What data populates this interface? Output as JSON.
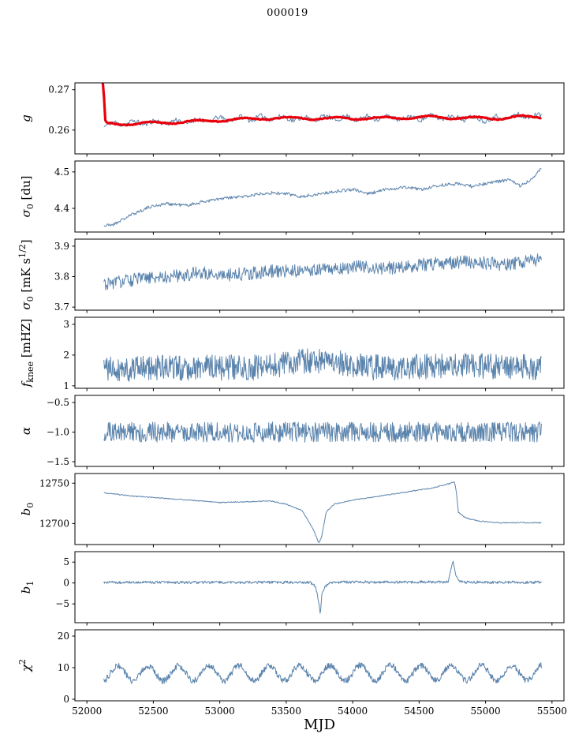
{
  "title": "000019",
  "xlabel": "MJD",
  "colors": {
    "line": "#5b84ad",
    "overlay": "#e8000b"
  },
  "axis": {
    "xlim": [
      51910,
      55590
    ],
    "xticks": [
      52000,
      52500,
      53000,
      53500,
      54000,
      54500,
      55000,
      55500
    ],
    "xtick_labels": [
      "52000",
      "52500",
      "53000",
      "53500",
      "54000",
      "54500",
      "55000",
      "55500"
    ]
  },
  "chart_data": [
    {
      "id": "g",
      "type": "line",
      "ylabel": [
        {
          "t": "g",
          "it": 1
        }
      ],
      "ylim": [
        0.2541,
        0.2717
      ],
      "yticks": [
        {
          "v": 0.26,
          "l": "0.26"
        },
        {
          "v": 0.27,
          "l": "0.27"
        }
      ],
      "series": [
        {
          "name": "g-fit",
          "color": "line",
          "width": 1,
          "seed": 11,
          "n": 420,
          "noise": 0.0006,
          "xrange": [
            52128,
            55420
          ],
          "sine": {
            "amp": 0.0005,
            "period": 160,
            "phase": 0.3
          },
          "keypoints": [
            [
              52128,
              0.2612
            ],
            [
              52250,
              0.2617
            ],
            [
              52500,
              0.2619
            ],
            [
              52800,
              0.2622
            ],
            [
              53000,
              0.2627
            ],
            [
              53200,
              0.2629
            ],
            [
              53400,
              0.2631
            ],
            [
              53600,
              0.2628
            ],
            [
              53800,
              0.263
            ],
            [
              54000,
              0.2629
            ],
            [
              54200,
              0.2631
            ],
            [
              54400,
              0.2629
            ],
            [
              54600,
              0.2632
            ],
            [
              54800,
              0.2631
            ],
            [
              55000,
              0.2627
            ],
            [
              55150,
              0.2632
            ],
            [
              55300,
              0.2636
            ],
            [
              55420,
              0.2633
            ]
          ]
        },
        {
          "name": "g-smooth",
          "color": "overlay",
          "width": 3.2,
          "seed": 12,
          "n": 360,
          "noise": 0.00012,
          "xrange": [
            52120,
            55420
          ],
          "sine": {
            "amp": 0.0003,
            "period": 350,
            "phase": 2
          },
          "keypoints": [
            [
              52120,
              0.2714
            ],
            [
              52126,
              0.2714
            ],
            [
              52134,
              0.2625
            ],
            [
              52145,
              0.2616
            ],
            [
              52250,
              0.2615
            ],
            [
              52500,
              0.2618
            ],
            [
              52800,
              0.2621
            ],
            [
              53100,
              0.2626
            ],
            [
              53400,
              0.263
            ],
            [
              53700,
              0.2629
            ],
            [
              54000,
              0.2629
            ],
            [
              54300,
              0.263
            ],
            [
              54600,
              0.2632
            ],
            [
              54900,
              0.263
            ],
            [
              55100,
              0.2629
            ],
            [
              55250,
              0.2633
            ],
            [
              55420,
              0.2632
            ]
          ]
        }
      ]
    },
    {
      "id": "sigma0-du",
      "type": "line",
      "ylabel": [
        {
          "t": "σ",
          "it": 1
        },
        {
          "t": "0",
          "sub": 1
        },
        {
          "t": " [du]"
        }
      ],
      "ylim": [
        4.335,
        4.53
      ],
      "yticks": [
        {
          "v": 4.4,
          "l": "4.4"
        },
        {
          "v": 4.5,
          "l": "4.5"
        }
      ],
      "series": [
        {
          "name": "sigma0-du",
          "color": "line",
          "width": 1,
          "seed": 21,
          "n": 650,
          "noise": 0.0045,
          "xrange": [
            52128,
            55420
          ],
          "keypoints": [
            [
              52128,
              4.352
            ],
            [
              52200,
              4.356
            ],
            [
              52350,
              4.385
            ],
            [
              52480,
              4.405
            ],
            [
              52600,
              4.413
            ],
            [
              52750,
              4.408
            ],
            [
              52900,
              4.42
            ],
            [
              53050,
              4.428
            ],
            [
              53200,
              4.433
            ],
            [
              53350,
              4.443
            ],
            [
              53500,
              4.44
            ],
            [
              53620,
              4.432
            ],
            [
              53750,
              4.44
            ],
            [
              53900,
              4.448
            ],
            [
              54000,
              4.452
            ],
            [
              54120,
              4.44
            ],
            [
              54250,
              4.452
            ],
            [
              54400,
              4.458
            ],
            [
              54520,
              4.452
            ],
            [
              54650,
              4.463
            ],
            [
              54800,
              4.468
            ],
            [
              54900,
              4.46
            ],
            [
              55050,
              4.472
            ],
            [
              55180,
              4.478
            ],
            [
              55260,
              4.462
            ],
            [
              55340,
              4.478
            ],
            [
              55420,
              4.512
            ]
          ]
        }
      ]
    },
    {
      "id": "sigma0-mks",
      "type": "line",
      "ylabel": [
        {
          "t": "σ",
          "it": 1
        },
        {
          "t": "0",
          "sub": 1
        },
        {
          "t": " [mK s"
        },
        {
          "t": "1/2",
          "sup": 1
        },
        {
          "t": "]"
        }
      ],
      "ylim": [
        3.69,
        3.923
      ],
      "yticks": [
        {
          "v": 3.7,
          "l": "3.7"
        },
        {
          "v": 3.8,
          "l": "3.8"
        },
        {
          "v": 3.9,
          "l": "3.9"
        }
      ],
      "series": [
        {
          "name": "sigma0-mks",
          "color": "line",
          "width": 1,
          "seed": 31,
          "n": 700,
          "noise": 0.022,
          "xrange": [
            52128,
            55420
          ],
          "keypoints": [
            [
              52128,
              3.775
            ],
            [
              52350,
              3.79
            ],
            [
              52600,
              3.8
            ],
            [
              52850,
              3.812
            ],
            [
              53100,
              3.806
            ],
            [
              53400,
              3.818
            ],
            [
              53700,
              3.822
            ],
            [
              54000,
              3.832
            ],
            [
              54300,
              3.828
            ],
            [
              54600,
              3.842
            ],
            [
              54900,
              3.848
            ],
            [
              55150,
              3.838
            ],
            [
              55300,
              3.85
            ],
            [
              55420,
              3.858
            ]
          ]
        }
      ]
    },
    {
      "id": "fknee",
      "type": "line",
      "ylabel": [
        {
          "t": "f",
          "it": 1
        },
        {
          "t": "knee",
          "sub": 1
        },
        {
          "t": " [mHZ]"
        }
      ],
      "ylim": [
        0.92,
        3.23
      ],
      "yticks": [
        {
          "v": 1,
          "l": "1"
        },
        {
          "v": 2,
          "l": "2"
        },
        {
          "v": 3,
          "l": "3"
        }
      ],
      "series": [
        {
          "name": "fknee",
          "color": "line",
          "width": 1,
          "seed": 41,
          "n": 850,
          "noise": 0.42,
          "xrange": [
            52128,
            55420
          ],
          "keypoints": [
            [
              52128,
              1.55
            ],
            [
              52800,
              1.6
            ],
            [
              53300,
              1.6
            ],
            [
              53650,
              1.8
            ],
            [
              53900,
              1.75
            ],
            [
              54100,
              1.6
            ],
            [
              54400,
              1.6
            ],
            [
              54800,
              1.65
            ],
            [
              55420,
              1.6
            ]
          ]
        }
      ]
    },
    {
      "id": "alpha",
      "type": "line",
      "ylabel": [
        {
          "t": "α",
          "it": 1
        }
      ],
      "ylim": [
        -1.58,
        -0.38
      ],
      "yticks": [
        {
          "v": -0.5,
          "l": "−0.5"
        },
        {
          "v": -1.0,
          "l": "−1.0"
        },
        {
          "v": -1.5,
          "l": "−1.5"
        }
      ],
      "series": [
        {
          "name": "alpha",
          "color": "line",
          "width": 1,
          "seed": 51,
          "n": 800,
          "noise": 0.17,
          "xrange": [
            52128,
            55420
          ],
          "keypoints": [
            [
              52128,
              -1.0
            ],
            [
              55420,
              -1.0
            ]
          ]
        }
      ]
    },
    {
      "id": "b0",
      "type": "line",
      "ylabel": [
        {
          "t": "b",
          "it": 1
        },
        {
          "t": "0",
          "sub": 1
        }
      ],
      "ylim": [
        12674,
        12762
      ],
      "yticks": [
        {
          "v": 12700,
          "l": "12700"
        },
        {
          "v": 12750,
          "l": "12750"
        }
      ],
      "series": [
        {
          "name": "b0",
          "color": "line",
          "width": 1,
          "seed": 61,
          "n": 650,
          "noise": 0.6,
          "xrange": [
            52128,
            55420
          ],
          "keypoints": [
            [
              52128,
              12738
            ],
            [
              52350,
              12734
            ],
            [
              52700,
              12730
            ],
            [
              53000,
              12726
            ],
            [
              53200,
              12727
            ],
            [
              53380,
              12728
            ],
            [
              53500,
              12724
            ],
            [
              53620,
              12716
            ],
            [
              53700,
              12694
            ],
            [
              53745,
              12676
            ],
            [
              53765,
              12682
            ],
            [
              53800,
              12714
            ],
            [
              53860,
              12724
            ],
            [
              54000,
              12729
            ],
            [
              54200,
              12734
            ],
            [
              54400,
              12739
            ],
            [
              54600,
              12744
            ],
            [
              54740,
              12750
            ],
            [
              54765,
              12752
            ],
            [
              54780,
              12740
            ],
            [
              54795,
              12714
            ],
            [
              54850,
              12707
            ],
            [
              54950,
              12703
            ],
            [
              55100,
              12701
            ],
            [
              55420,
              12701
            ]
          ]
        }
      ]
    },
    {
      "id": "b1",
      "type": "line",
      "ylabel": [
        {
          "t": "b",
          "it": 1
        },
        {
          "t": "1",
          "sub": 1
        }
      ],
      "ylim": [
        -9.5,
        7.5
      ],
      "yticks": [
        {
          "v": -5,
          "l": "−5"
        },
        {
          "v": 0,
          "l": "0"
        },
        {
          "v": 5,
          "l": "5"
        }
      ],
      "series": [
        {
          "name": "b1",
          "color": "line",
          "width": 1,
          "seed": 71,
          "n": 800,
          "noise": 0.32,
          "xrange": [
            52128,
            55420
          ],
          "keypoints": [
            [
              52128,
              0.15
            ],
            [
              53680,
              0.15
            ],
            [
              53720,
              -0.8
            ],
            [
              53745,
              -4.5
            ],
            [
              53757,
              -7.4
            ],
            [
              53768,
              -2.5
            ],
            [
              53790,
              -1
            ],
            [
              53830,
              0
            ],
            [
              53900,
              0.2
            ],
            [
              54720,
              0.25
            ],
            [
              54755,
              5.2
            ],
            [
              54775,
              2
            ],
            [
              54800,
              0.5
            ],
            [
              54850,
              0.2
            ],
            [
              55420,
              0.15
            ]
          ]
        }
      ]
    },
    {
      "id": "chi2",
      "type": "line",
      "ylabel": [
        {
          "t": "χ",
          "it": 1
        },
        {
          "t": "2",
          "sup": 1
        }
      ],
      "ylim": [
        -0.5,
        22
      ],
      "yticks": [
        {
          "v": 0,
          "l": "0"
        },
        {
          "v": 10,
          "l": "10"
        },
        {
          "v": 20,
          "l": "20"
        }
      ],
      "series": [
        {
          "name": "chi2",
          "color": "line",
          "width": 1,
          "seed": 81,
          "n": 850,
          "noise": 1.0,
          "xrange": [
            52128,
            55420
          ],
          "sine": {
            "amp": 2.4,
            "period": 228,
            "phase": 1.0
          },
          "keypoints": [
            [
              52128,
              8.2
            ],
            [
              55420,
              8.4
            ]
          ]
        }
      ]
    }
  ]
}
